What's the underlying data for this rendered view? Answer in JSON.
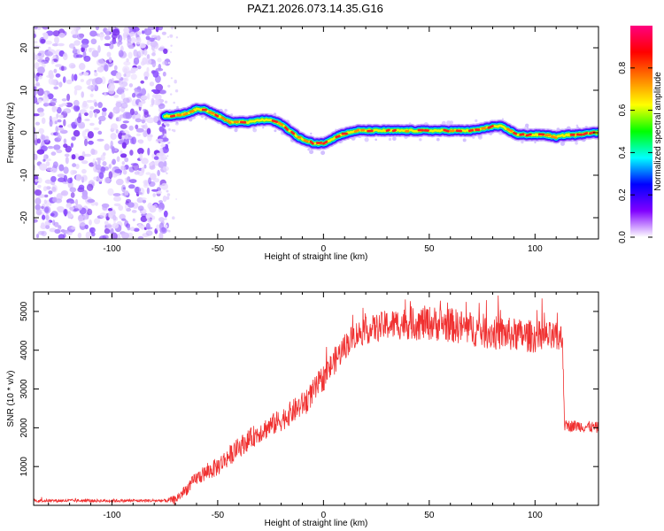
{
  "title": "PAZ1.2026.073.14.35.G16",
  "chart_data": [
    {
      "type": "heatmap",
      "name": "spectrogram",
      "xlabel": "Height of straight line (km)",
      "ylabel": "Frequency (Hz)",
      "xlim": [
        -137,
        130
      ],
      "ylim": [
        -25,
        25
      ],
      "xticks": [
        -100,
        -50,
        0,
        50,
        100
      ],
      "yticks": [
        -20,
        -10,
        0,
        10,
        20
      ],
      "noise_region_x": [
        -137,
        -75
      ],
      "ridge": {
        "x": [
          -75,
          -70,
          -65,
          -60,
          -56,
          -52,
          -48,
          -44,
          -40,
          -35,
          -30,
          -25,
          -20,
          -16,
          -12,
          -8,
          -4,
          0,
          4,
          8,
          12,
          16,
          20,
          30,
          40,
          50,
          60,
          70,
          76,
          80,
          84,
          88,
          92,
          96,
          100,
          105,
          110,
          115,
          120,
          125,
          130
        ],
        "y": [
          4,
          4,
          4.5,
          5.5,
          5.5,
          4.5,
          3.5,
          2.5,
          2.5,
          2.5,
          3,
          3,
          2,
          0.5,
          -1,
          -2,
          -2.5,
          -2.5,
          -1.5,
          -0.5,
          0,
          0.5,
          0.5,
          0.5,
          0.5,
          0.5,
          0.5,
          0.5,
          1,
          1.5,
          1.5,
          0.5,
          -0.5,
          -0.5,
          -0.5,
          -0.5,
          -1,
          -0.5,
          -0.5,
          0,
          0
        ]
      },
      "colorbar": {
        "label": "Normalized spectral amplitude",
        "min": 0.0,
        "max": 1.0,
        "ticks": [
          0.0,
          0.2,
          0.4,
          0.6,
          0.8
        ],
        "tick_labels": [
          "0.0",
          "0.2",
          "0.4",
          "0.6",
          "0.8"
        ],
        "colors": [
          "#ffffff",
          "#8000ff",
          "#0000ff",
          "#00ffff",
          "#00ff00",
          "#ffff00",
          "#ff8000",
          "#ff0000",
          "#ff0080"
        ]
      }
    },
    {
      "type": "line",
      "name": "snr",
      "xlabel": "Height of straight line (km)",
      "ylabel": "SNR (10 * v/v)",
      "xlim": [
        -137,
        130
      ],
      "ylim": [
        0,
        5500
      ],
      "xticks": [
        -100,
        -50,
        0,
        50,
        100
      ],
      "yticks": [
        1000,
        2000,
        3000,
        4000,
        5000
      ],
      "color": "#f03030",
      "envelope": {
        "x": [
          -137,
          -110,
          -90,
          -75,
          -70,
          -65,
          -60,
          -50,
          -40,
          -30,
          -20,
          -10,
          -5,
          0,
          5,
          10,
          15,
          20,
          30,
          40,
          50,
          60,
          70,
          80,
          90,
          100,
          105,
          110,
          113,
          114,
          120,
          130
        ],
        "y": [
          120,
          120,
          120,
          120,
          150,
          400,
          700,
          1000,
          1500,
          1900,
          2200,
          2600,
          2900,
          3300,
          3700,
          4100,
          4400,
          4500,
          4650,
          4700,
          4700,
          4650,
          4550,
          4450,
          4400,
          4350,
          4350,
          4300,
          4300,
          2050,
          2050,
          2000
        ]
      },
      "noise_amplitude": {
        "x": [
          -137,
          -75,
          -70,
          -50,
          -20,
          0,
          20,
          45,
          80,
          113,
          114,
          130
        ],
        "y": [
          40,
          40,
          120,
          250,
          300,
          350,
          350,
          450,
          450,
          400,
          150,
          150
        ]
      }
    }
  ]
}
